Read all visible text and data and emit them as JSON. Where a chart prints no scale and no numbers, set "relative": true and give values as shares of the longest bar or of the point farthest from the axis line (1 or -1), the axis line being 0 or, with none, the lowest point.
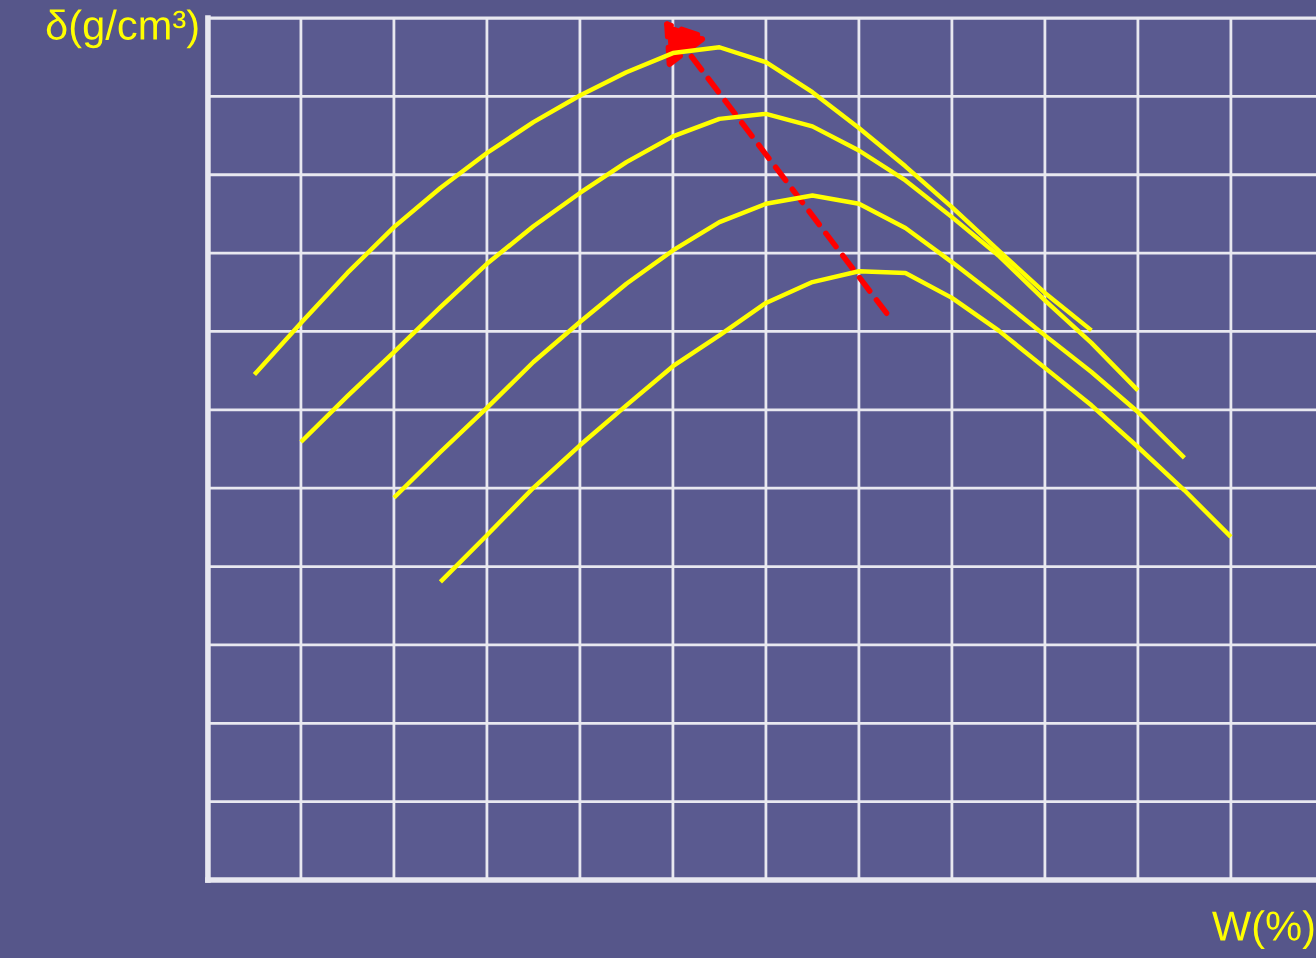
{
  "chart_data": {
    "type": "line",
    "relative": true,
    "xlabel": "W(%)",
    "ylabel": "δ(g/cm³)",
    "grid": true,
    "tick_labels": false,
    "marker": "none",
    "line_style": "solid",
    "categories": [
      null,
      null,
      null,
      null,
      null,
      null,
      null,
      null,
      null,
      null,
      null,
      null,
      null,
      null,
      null,
      null,
      null,
      null,
      null,
      null,
      null,
      null,
      null,
      null
    ],
    "series": [
      {
        "color": "#ffff00",
        "values": [
          null,
          0.607,
          0.669,
          0.729,
          0.784,
          0.831,
          0.873,
          0.91,
          0.942,
          0.97,
          0.993,
          1.0,
          0.982,
          0.946,
          0.903,
          0.857,
          0.808,
          0.756,
          0.705,
          0.66,
          null,
          null,
          null,
          null
        ]
      },
      {
        "color": "#ffff00",
        "values": [
          null,
          null,
          0.526,
          0.581,
          0.634,
          0.688,
          0.74,
          0.785,
          0.825,
          0.862,
          0.893,
          0.914,
          0.92,
          0.905,
          0.876,
          0.84,
          0.796,
          0.75,
          0.696,
          0.645,
          0.588,
          null,
          null,
          null
        ]
      },
      {
        "color": "#ffff00",
        "values": [
          null,
          null,
          null,
          null,
          0.459,
          0.514,
          0.567,
          0.622,
          0.67,
          0.716,
          0.756,
          0.79,
          0.812,
          0.822,
          0.812,
          0.783,
          0.742,
          0.699,
          0.654,
          0.61,
          0.562,
          0.507,
          null,
          null
        ]
      },
      {
        "color": "#ffff00",
        "values": [
          null,
          null,
          null,
          null,
          null,
          0.358,
          0.414,
          0.471,
          0.522,
          0.57,
          0.617,
          0.654,
          0.693,
          0.718,
          0.731,
          0.729,
          0.699,
          0.66,
          0.615,
          0.57,
          0.52,
          0.468,
          0.412,
          null
        ]
      }
    ]
  }
}
